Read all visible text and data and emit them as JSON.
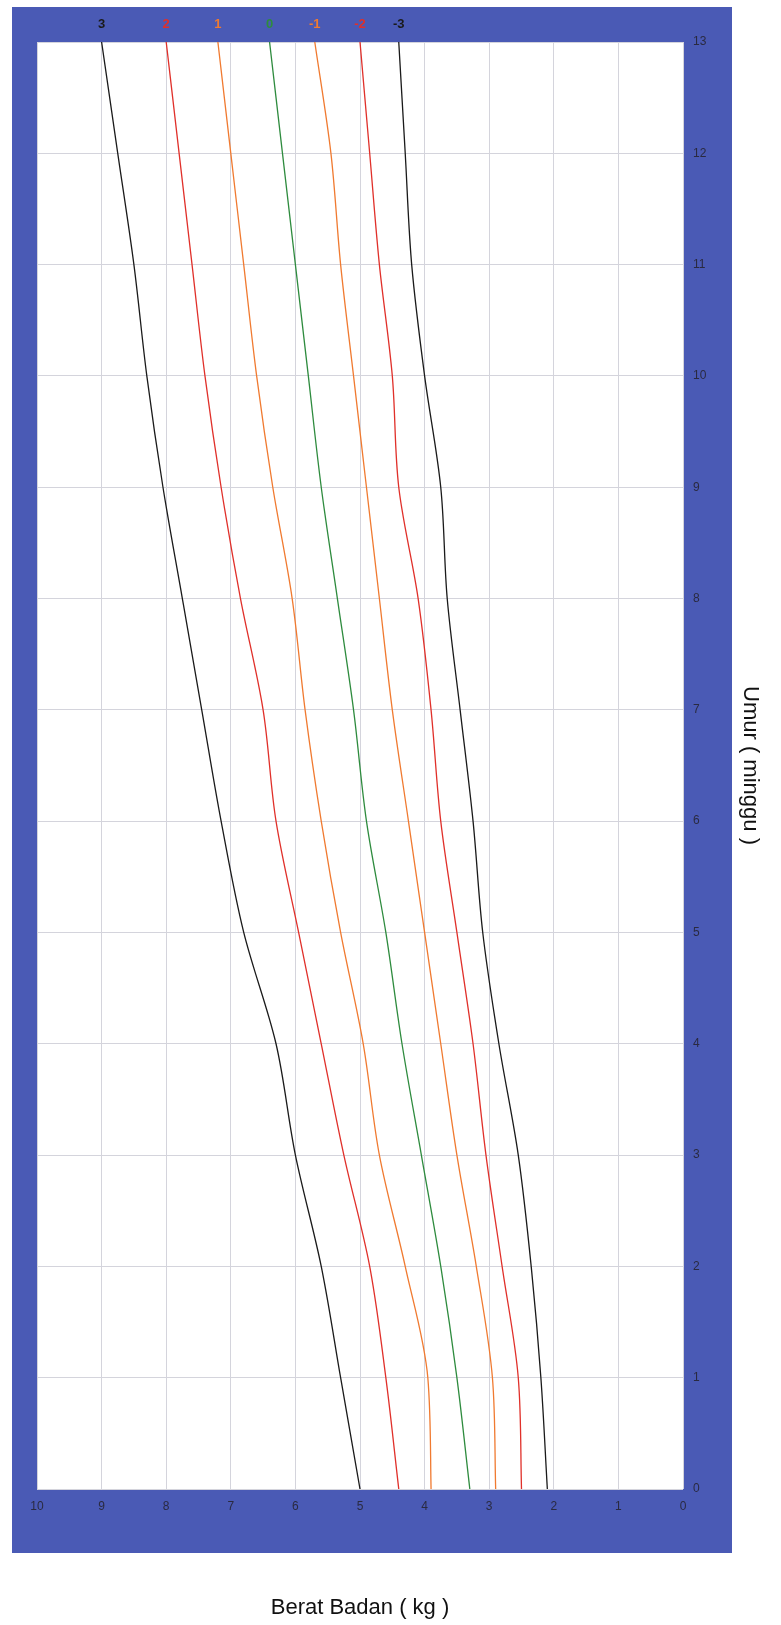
{
  "chart_data": {
    "type": "line",
    "orientation": "horizontal",
    "xlabel": "Berat Badan ( kg )",
    "ylabel": "Umur ( minggu )",
    "x": [
      0,
      1,
      2,
      3,
      4,
      5,
      6,
      7,
      8,
      9,
      10,
      11,
      12,
      13
    ],
    "xlim": [
      10,
      0
    ],
    "xticks": [
      10,
      9,
      8,
      7,
      6,
      5,
      4,
      3,
      2,
      1,
      0
    ],
    "ylim": [
      0,
      13
    ],
    "yticks": [
      0,
      1,
      2,
      3,
      4,
      5,
      6,
      7,
      8,
      9,
      10,
      11,
      12,
      13
    ],
    "grid": true,
    "marker": "none",
    "line_style": "solid",
    "series": [
      {
        "name": "3",
        "color": "#1a1a1a",
        "values": [
          5.0,
          5.3,
          5.6,
          6.0,
          6.3,
          6.8,
          7.15,
          7.45,
          7.75,
          8.05,
          8.3,
          8.5,
          8.75,
          9.0
        ]
      },
      {
        "name": "2",
        "color": "#e0302a",
        "values": [
          4.4,
          4.6,
          4.85,
          5.25,
          5.6,
          5.95,
          6.3,
          6.5,
          6.85,
          7.15,
          7.4,
          7.6,
          7.8,
          8.0
        ]
      },
      {
        "name": "1",
        "color": "#f07a30",
        "values": [
          3.9,
          3.95,
          4.3,
          4.7,
          4.95,
          5.3,
          5.6,
          5.85,
          6.05,
          6.35,
          6.6,
          6.8,
          7.0,
          7.2
        ]
      },
      {
        "name": "0",
        "color": "#2e8b3e",
        "values": [
          3.3,
          3.5,
          3.75,
          4.05,
          4.35,
          4.6,
          4.9,
          5.1,
          5.35,
          5.6,
          5.8,
          6.0,
          6.2,
          6.4
        ]
      },
      {
        "name": "-1",
        "color": "#f07a30",
        "values": [
          2.9,
          2.95,
          3.2,
          3.5,
          3.75,
          4.0,
          4.25,
          4.5,
          4.7,
          4.9,
          5.1,
          5.3,
          5.45,
          5.7
        ]
      },
      {
        "name": "-2",
        "color": "#e0302a",
        "values": [
          2.5,
          2.55,
          2.8,
          3.05,
          3.25,
          3.5,
          3.75,
          3.9,
          4.1,
          4.4,
          4.5,
          4.7,
          4.85,
          5.0
        ]
      },
      {
        "name": "-3",
        "color": "#1a1a1a",
        "values": [
          2.1,
          2.2,
          2.35,
          2.55,
          2.85,
          3.1,
          3.25,
          3.45,
          3.65,
          3.75,
          4.0,
          4.2,
          4.3,
          4.4
        ]
      }
    ]
  }
}
